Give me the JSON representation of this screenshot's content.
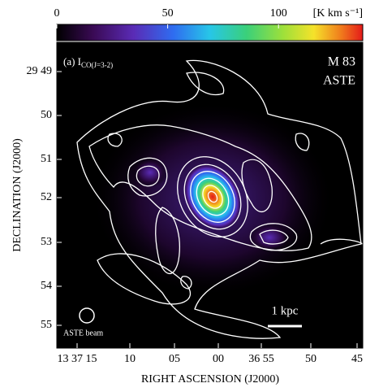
{
  "figure": {
    "colorbar": {
      "range": [
        0,
        138
      ],
      "ticks": [
        0,
        50,
        100
      ],
      "unit": "[K km s⁻¹]"
    },
    "panel_label": "(a) I",
    "panel_label_sub": "CO(J=3-2)",
    "object": "M 83",
    "telescope": "ASTE",
    "scale_bar": "1 kpc",
    "beam_label": "ASTE beam",
    "x_axis": {
      "title": "RIGHT ASCENSION (J2000)",
      "ticks": [
        "13 37 15",
        "10",
        "05",
        "00",
        "36 55",
        "50",
        "45"
      ]
    },
    "y_axis": {
      "title": "DECLINATION (J2000)",
      "ticks": [
        "29 49",
        "50",
        "51",
        "52",
        "53",
        "54",
        "55"
      ]
    }
  }
}
